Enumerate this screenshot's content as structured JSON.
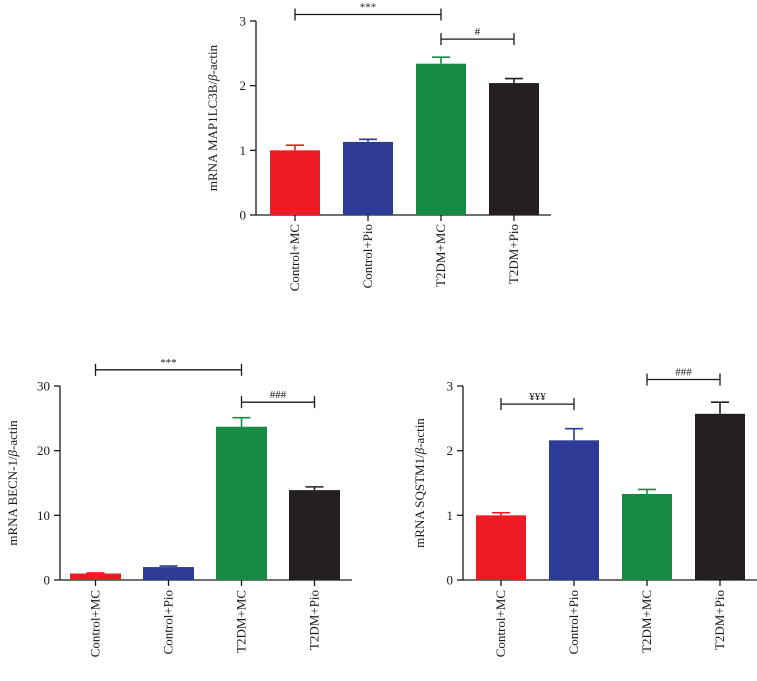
{
  "chart_data": [
    {
      "type": "bar",
      "id": "map1lc3b",
      "ylabel_prefix": "mRNA MAP1LC3B/",
      "ylabel_greek": "β",
      "ylabel_suffix": "-actin",
      "ylim": [
        0,
        3
      ],
      "yticks": [
        0,
        1,
        2,
        3
      ],
      "categories": [
        "Control+MC",
        "Control+Pio",
        "T2DM+MC",
        "T2DM+Pio"
      ],
      "values": [
        1.0,
        1.13,
        2.34,
        2.04
      ],
      "errors": [
        0.08,
        0.04,
        0.1,
        0.07
      ],
      "colors": [
        "#ed1c24",
        "#2e3b96",
        "#178a43",
        "#231f20"
      ],
      "annotations": [
        {
          "from": 0,
          "to": 2,
          "y": 3.1,
          "label": "***"
        },
        {
          "from": 2,
          "to": 3,
          "y": 2.72,
          "label": "#"
        }
      ]
    },
    {
      "type": "bar",
      "id": "becn1",
      "ylabel_prefix": "mRNA BECN-1/",
      "ylabel_greek": "β",
      "ylabel_suffix": "-actin",
      "ylim": [
        0,
        30
      ],
      "yticks": [
        0,
        10,
        20,
        30
      ],
      "categories": [
        "Control+MC",
        "Control+Pio",
        "T2DM+MC",
        "T2DM+Pio"
      ],
      "values": [
        1.0,
        2.0,
        23.7,
        13.9
      ],
      "errors": [
        0.1,
        0.15,
        1.4,
        0.5
      ],
      "colors": [
        "#ed1c24",
        "#2e3b96",
        "#178a43",
        "#231f20"
      ],
      "annotations": [
        {
          "from": 0,
          "to": 2,
          "y": 32.5,
          "label": "***"
        },
        {
          "from": 2,
          "to": 3,
          "y": 27.5,
          "label": "###"
        }
      ]
    },
    {
      "type": "bar",
      "id": "sqstm1",
      "ylabel_prefix": "mRNA SQSTM1/",
      "ylabel_greek": "β",
      "ylabel_suffix": "-actin",
      "ylim": [
        0,
        3
      ],
      "yticks": [
        0,
        1,
        2,
        3
      ],
      "categories": [
        "Control+MC",
        "Control+Pio",
        "T2DM+MC",
        "T2DM+Pio"
      ],
      "values": [
        1.0,
        2.16,
        1.33,
        2.57
      ],
      "errors": [
        0.04,
        0.18,
        0.07,
        0.18
      ],
      "colors": [
        "#ed1c24",
        "#2e3b96",
        "#178a43",
        "#231f20"
      ],
      "annotations": [
        {
          "from": 0,
          "to": 1,
          "y": 2.72,
          "label": "¥¥¥"
        },
        {
          "from": 2,
          "to": 3,
          "y": 3.1,
          "label": "###"
        }
      ]
    }
  ]
}
